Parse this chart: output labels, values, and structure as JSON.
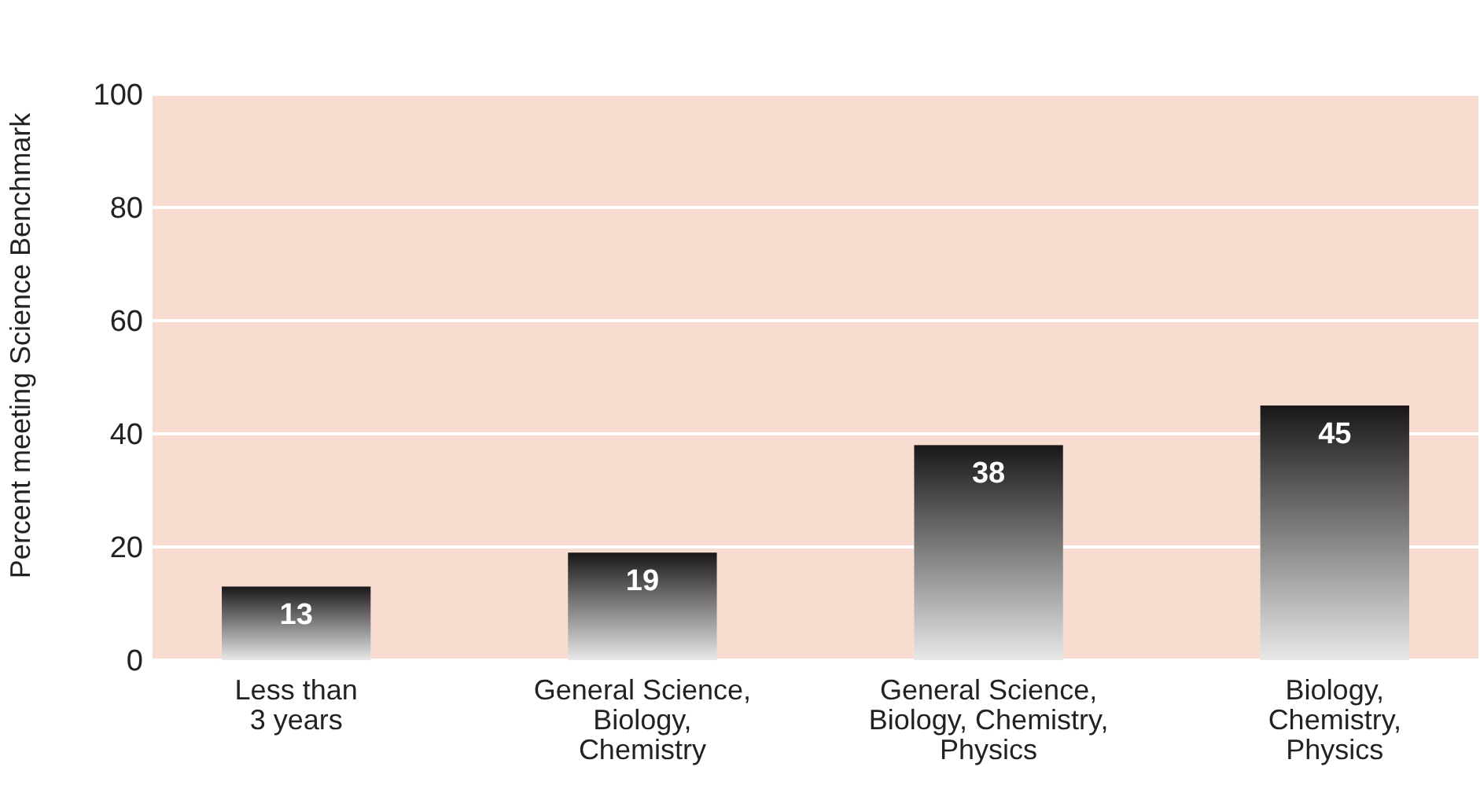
{
  "chart_data": {
    "type": "bar",
    "ylabel": "Percent meeting Science Benchmark",
    "categories": [
      "Less than\n3 years",
      "General Science,\nBiology,\nChemistry",
      "General Science,\nBiology, Chemistry,\nPhysics",
      "Biology,\nChemistry,\nPhysics"
    ],
    "values": [
      13,
      19,
      38,
      45
    ],
    "color": "#1a1718",
    "ylim": [
      0,
      100
    ],
    "yticks": [
      0,
      20,
      40,
      60,
      80,
      100
    ],
    "grid": "y",
    "data_labels": true
  }
}
